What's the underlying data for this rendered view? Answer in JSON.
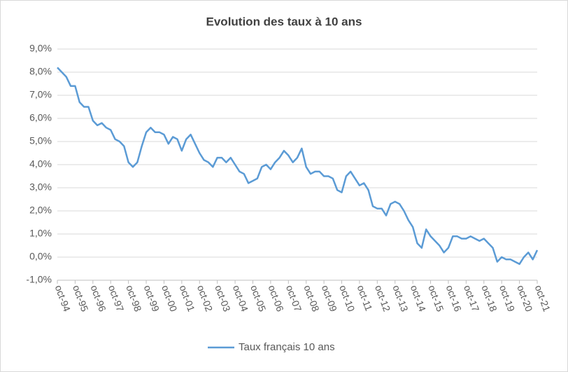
{
  "chart_data": {
    "type": "line",
    "title": "Evolution des taux à 10 ans",
    "categories": [
      "oct-94",
      null,
      null,
      null,
      "oct-95",
      null,
      null,
      null,
      "oct-96",
      null,
      null,
      null,
      "oct-97",
      null,
      null,
      null,
      "oct-98",
      null,
      null,
      null,
      "oct-99",
      null,
      null,
      null,
      "oct-00",
      null,
      null,
      null,
      "oct-01",
      null,
      null,
      null,
      "oct-02",
      null,
      null,
      null,
      "oct-03",
      null,
      null,
      null,
      "oct-04",
      null,
      null,
      null,
      "oct-05",
      null,
      null,
      null,
      "oct-06",
      null,
      null,
      null,
      "oct-07",
      null,
      null,
      null,
      "oct-08",
      null,
      null,
      null,
      "oct-09",
      null,
      null,
      null,
      "oct-10",
      null,
      null,
      null,
      "oct-11",
      null,
      null,
      null,
      "oct-12",
      null,
      null,
      null,
      "oct-13",
      null,
      null,
      null,
      "oct-14",
      null,
      null,
      null,
      "oct-15",
      null,
      null,
      null,
      "oct-16",
      null,
      null,
      null,
      "oct-17",
      null,
      null,
      null,
      "oct-18",
      null,
      null,
      null,
      "oct-19",
      null,
      null,
      null,
      "oct-20",
      null,
      null,
      null,
      "oct-21"
    ],
    "series": [
      {
        "name": "Taux français 10 ans",
        "color": "#5b9bd5",
        "values": [
          8.2,
          8.0,
          7.8,
          7.4,
          7.4,
          6.7,
          6.5,
          6.5,
          5.9,
          5.7,
          5.8,
          5.6,
          5.5,
          5.1,
          5.0,
          4.8,
          4.1,
          3.9,
          4.1,
          4.8,
          5.4,
          5.6,
          5.4,
          5.4,
          5.3,
          4.9,
          5.2,
          5.1,
          4.6,
          5.1,
          5.3,
          4.9,
          4.5,
          4.2,
          4.1,
          3.9,
          4.3,
          4.3,
          4.1,
          4.3,
          4.0,
          3.7,
          3.6,
          3.2,
          3.3,
          3.4,
          3.9,
          4.0,
          3.8,
          4.1,
          4.3,
          4.6,
          4.4,
          4.1,
          4.3,
          4.7,
          3.9,
          3.6,
          3.7,
          3.7,
          3.5,
          3.5,
          3.4,
          2.9,
          2.8,
          3.5,
          3.7,
          3.4,
          3.1,
          3.2,
          2.9,
          2.2,
          2.1,
          2.1,
          1.8,
          2.3,
          2.4,
          2.3,
          2.0,
          1.6,
          1.3,
          0.6,
          0.4,
          1.2,
          0.9,
          0.7,
          0.5,
          0.2,
          0.4,
          0.9,
          0.9,
          0.8,
          0.8,
          0.9,
          0.8,
          0.7,
          0.8,
          0.6,
          0.4,
          -0.2,
          0.0,
          -0.1,
          -0.1,
          -0.2,
          -0.3,
          0.0,
          0.2,
          -0.1,
          0.3
        ]
      }
    ],
    "ylim": [
      -1,
      9
    ],
    "yticks": [
      {
        "value": -1,
        "label": "-1,0%"
      },
      {
        "value": 0,
        "label": "0,0%"
      },
      {
        "value": 1,
        "label": "1,0%"
      },
      {
        "value": 2,
        "label": "2,0%"
      },
      {
        "value": 3,
        "label": "3,0%"
      },
      {
        "value": 4,
        "label": "4,0%"
      },
      {
        "value": 5,
        "label": "5,0%"
      },
      {
        "value": 6,
        "label": "6,0%"
      },
      {
        "value": 7,
        "label": "7,0%"
      },
      {
        "value": 8,
        "label": "8,0%"
      },
      {
        "value": 9,
        "label": "9,0%"
      }
    ],
    "grid": true,
    "legend": "bottom"
  }
}
